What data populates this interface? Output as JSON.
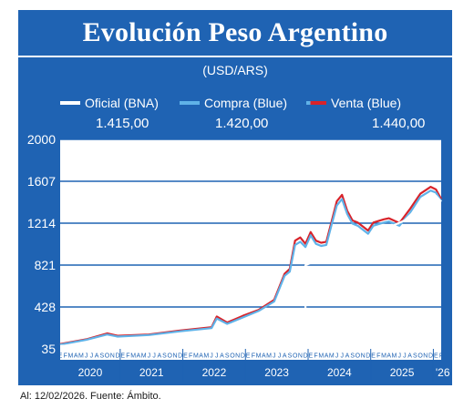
{
  "header": {
    "title": "Evolución Peso Argentino",
    "subtitle": "(USD/ARS)"
  },
  "legend": [
    {
      "label": "Oficial (BNA)",
      "value": "1.415,00",
      "color": "#ffffff"
    },
    {
      "label": "Compra (Blue)",
      "value": "1.420,00",
      "color": "#5fb2e8"
    },
    {
      "label": "Venta (Blue)",
      "value": "1.440,00",
      "color": "#d8232a"
    }
  ],
  "footer": "Al: 12/02/2026. Fuente: Ámbito.",
  "chart_data": {
    "type": "line",
    "ylim": [
      35,
      2000
    ],
    "yticks": [
      "35",
      "428",
      "821",
      "1214",
      "1607",
      "2000"
    ],
    "grid": true,
    "month_letters": [
      "E",
      "F",
      "M",
      "A",
      "M",
      "J",
      "J",
      "A",
      "S",
      "O",
      "N",
      "D"
    ],
    "year_labels": [
      "2020",
      "2021",
      "2022",
      "2023",
      "2024",
      "2025",
      "'26"
    ],
    "x_start": "2020-01",
    "x_end": "2026-02",
    "series": [
      {
        "name": "Oficial (BNA)",
        "color": "#ffffff",
        "points": [
          [
            "2020-01",
            63
          ],
          [
            "2020-06",
            72
          ],
          [
            "2020-12",
            88
          ],
          [
            "2021-06",
            100
          ],
          [
            "2021-12",
            108
          ],
          [
            "2022-06",
            130
          ],
          [
            "2022-12",
            180
          ],
          [
            "2023-03",
            215
          ],
          [
            "2023-06",
            260
          ],
          [
            "2023-08",
            290
          ],
          [
            "2023-08",
            365
          ],
          [
            "2023-11",
            370
          ],
          [
            "2023-12",
            370
          ],
          [
            "2023-12",
            820
          ],
          [
            "2024-02",
            860
          ],
          [
            "2024-06",
            915
          ],
          [
            "2024-10",
            990
          ],
          [
            "2025-03",
            1080
          ],
          [
            "2025-04",
            1080
          ],
          [
            "2025-04",
            1175
          ],
          [
            "2025-07",
            1240
          ],
          [
            "2025-10",
            1380
          ],
          [
            "2025-12",
            1460
          ],
          [
            "2026-01",
            1470
          ],
          [
            "2026-02",
            1415
          ]
        ]
      },
      {
        "name": "Compra (Blue)",
        "color": "#5fb2e8",
        "points": [
          [
            "2020-01",
            75
          ],
          [
            "2020-06",
            120
          ],
          [
            "2020-10",
            170
          ],
          [
            "2020-12",
            150
          ],
          [
            "2021-06",
            165
          ],
          [
            "2021-12",
            200
          ],
          [
            "2022-06",
            230
          ],
          [
            "2022-07",
            320
          ],
          [
            "2022-09",
            270
          ],
          [
            "2022-12",
            330
          ],
          [
            "2023-03",
            390
          ],
          [
            "2023-06",
            480
          ],
          [
            "2023-08",
            720
          ],
          [
            "2023-09",
            760
          ],
          [
            "2023-10",
            1010
          ],
          [
            "2023-11",
            1040
          ],
          [
            "2023-12",
            990
          ],
          [
            "2024-01",
            1100
          ],
          [
            "2024-02",
            1020
          ],
          [
            "2024-03",
            1000
          ],
          [
            "2024-04",
            1010
          ],
          [
            "2024-05",
            1200
          ],
          [
            "2024-06",
            1380
          ],
          [
            "2024-07",
            1440
          ],
          [
            "2024-08",
            1300
          ],
          [
            "2024-09",
            1210
          ],
          [
            "2024-10",
            1190
          ],
          [
            "2024-12",
            1115
          ],
          [
            "2025-01",
            1190
          ],
          [
            "2025-03",
            1220
          ],
          [
            "2025-04",
            1230
          ],
          [
            "2025-06",
            1190
          ],
          [
            "2025-08",
            1310
          ],
          [
            "2025-10",
            1460
          ],
          [
            "2025-12",
            1520
          ],
          [
            "2026-01",
            1500
          ],
          [
            "2026-02",
            1420
          ]
        ]
      },
      {
        "name": "Venta (Blue)",
        "color": "#d8232a",
        "points": [
          [
            "2020-01",
            80
          ],
          [
            "2020-06",
            125
          ],
          [
            "2020-10",
            180
          ],
          [
            "2020-12",
            158
          ],
          [
            "2021-06",
            170
          ],
          [
            "2021-12",
            208
          ],
          [
            "2022-06",
            238
          ],
          [
            "2022-07",
            338
          ],
          [
            "2022-09",
            282
          ],
          [
            "2022-12",
            345
          ],
          [
            "2023-03",
            400
          ],
          [
            "2023-06",
            495
          ],
          [
            "2023-08",
            740
          ],
          [
            "2023-09",
            785
          ],
          [
            "2023-10",
            1050
          ],
          [
            "2023-11",
            1080
          ],
          [
            "2023-12",
            1020
          ],
          [
            "2024-01",
            1130
          ],
          [
            "2024-02",
            1050
          ],
          [
            "2024-03",
            1030
          ],
          [
            "2024-04",
            1040
          ],
          [
            "2024-05",
            1230
          ],
          [
            "2024-06",
            1420
          ],
          [
            "2024-07",
            1480
          ],
          [
            "2024-08",
            1330
          ],
          [
            "2024-09",
            1240
          ],
          [
            "2024-10",
            1220
          ],
          [
            "2024-12",
            1145
          ],
          [
            "2025-01",
            1220
          ],
          [
            "2025-03",
            1250
          ],
          [
            "2025-04",
            1260
          ],
          [
            "2025-06",
            1215
          ],
          [
            "2025-08",
            1345
          ],
          [
            "2025-10",
            1490
          ],
          [
            "2025-12",
            1555
          ],
          [
            "2026-01",
            1530
          ],
          [
            "2026-02",
            1440
          ]
        ]
      }
    ]
  }
}
